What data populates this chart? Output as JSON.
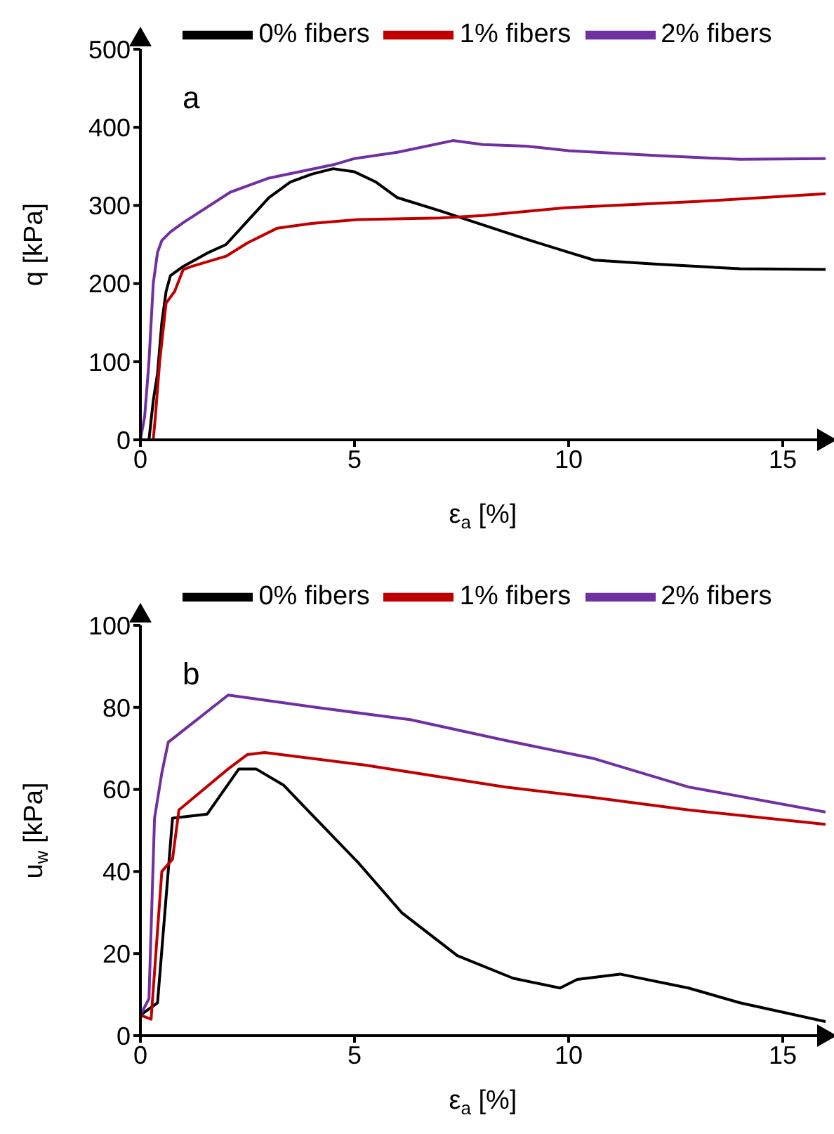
{
  "chart_data": [
    {
      "type": "line",
      "xlabel": "ε$_{a}$  [%]",
      "ylabel": "q  [kPa]",
      "xlim": [
        0,
        16
      ],
      "xticks": [
        0,
        5,
        10,
        15
      ],
      "ylim": [
        0,
        500
      ],
      "yticks": [
        0,
        100,
        200,
        300,
        400,
        500
      ],
      "grid": false,
      "legend": "top",
      "marker": "none",
      "line_style": "solid",
      "annotations": [
        "a"
      ],
      "series": [
        {
          "name": "0% fibers",
          "color": "#000000",
          "x": [
            0.2,
            0.3,
            0.4,
            0.5,
            0.6,
            0.7,
            1,
            1.6,
            2,
            2.5,
            3,
            3.5,
            4,
            4.5,
            5,
            5.5,
            6,
            7,
            8,
            9,
            10,
            10.6,
            12,
            14,
            16
          ],
          "values": [
            0,
            50,
            85,
            150,
            190,
            210,
            222,
            240,
            250,
            280,
            310,
            330,
            340,
            347,
            343,
            330,
            310,
            293,
            275,
            257,
            240,
            230,
            225,
            219,
            218
          ]
        },
        {
          "name": "1% fibers",
          "color": "#c00000",
          "x": [
            0.3,
            0.35,
            0.45,
            0.6,
            0.8,
            1,
            1.2,
            2,
            2.5,
            3.2,
            4,
            5.1,
            7,
            8,
            9.9,
            11,
            13,
            16
          ],
          "values": [
            0,
            30,
            100,
            175,
            190,
            218,
            222,
            235,
            252,
            271,
            277,
            282,
            284,
            287,
            297,
            300,
            305,
            315
          ]
        },
        {
          "name": "2% fibers",
          "color": "#7030a0",
          "x": [
            0,
            0.1,
            0.2,
            0.3,
            0.4,
            0.5,
            0.7,
            1,
            2.1,
            3,
            4.5,
            5,
            6,
            7.3,
            8,
            9,
            10,
            12,
            14,
            16
          ],
          "values": [
            0,
            30,
            100,
            200,
            240,
            255,
            266,
            278,
            317,
            335,
            352,
            360,
            368,
            383,
            378,
            376,
            370,
            364,
            359,
            360
          ]
        }
      ]
    },
    {
      "type": "line",
      "xlabel": "ε$_{a}$  [%]",
      "ylabel": "u$_{w}$  [kPa]",
      "xlim": [
        0,
        16
      ],
      "xticks": [
        0,
        5,
        10,
        15
      ],
      "ylim": [
        0,
        100
      ],
      "yticks": [
        0,
        20,
        40,
        60,
        80,
        100
      ],
      "grid": false,
      "legend": "top",
      "marker": "none",
      "line_style": "solid",
      "annotations": [
        "b"
      ],
      "series": [
        {
          "name": "0%  fibers",
          "color": "#000000",
          "x": [
            0,
            0.4,
            0.75,
            1.56,
            2.3,
            2.7,
            3.35,
            3.9,
            5.1,
            6.1,
            7.4,
            8.7,
            9.8,
            10.2,
            11.2,
            12.8,
            14,
            16
          ],
          "values": [
            5,
            8,
            53,
            54,
            65,
            65,
            61,
            55,
            42,
            30,
            19.5,
            14,
            11.6,
            13.7,
            15,
            11.6,
            8,
            3.4
          ]
        },
        {
          "name": "1%  fibers",
          "color": "#c00000",
          "x": [
            0,
            0.25,
            0.5,
            0.75,
            0.9,
            2.05,
            2.5,
            2.9,
            5.2,
            8.5,
            10.6,
            12.8,
            16
          ],
          "values": [
            5,
            4,
            40,
            43,
            55,
            65,
            68.5,
            69,
            66,
            60.6,
            58,
            55,
            51.5
          ]
        },
        {
          "name": "2%  fibers",
          "color": "#7030a0",
          "x": [
            0,
            0.2,
            0.33,
            0.5,
            0.65,
            2.05,
            4.1,
            6.3,
            8.5,
            10.6,
            12.8,
            16
          ],
          "values": [
            5,
            9,
            53,
            64,
            71.5,
            83,
            80,
            77,
            72,
            67.5,
            60.6,
            54.5
          ]
        }
      ]
    }
  ]
}
